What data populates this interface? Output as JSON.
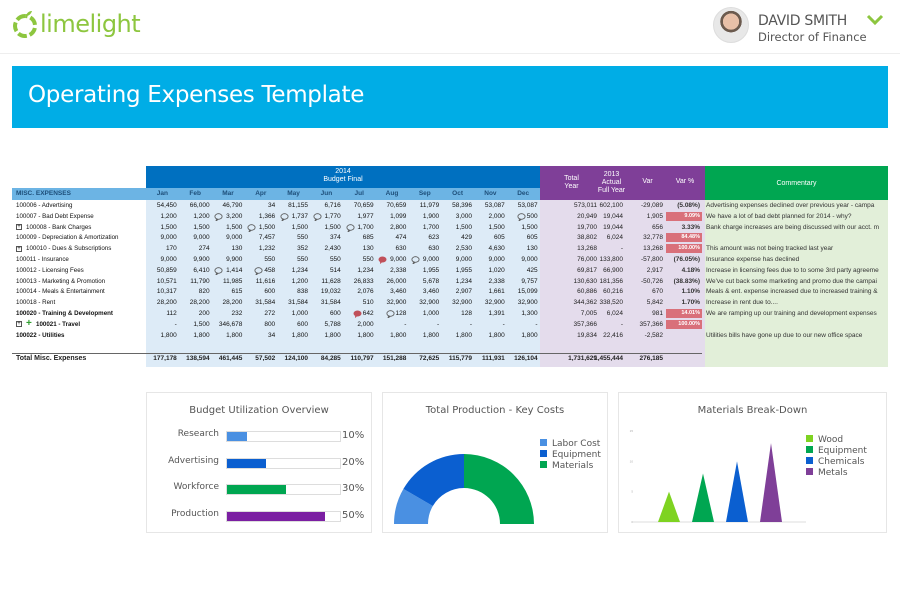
{
  "header": {
    "logo": "limelight",
    "user_name": "DAVID SMITH",
    "user_role": "Director of Finance"
  },
  "banner": {
    "title": "Operating Expenses Template"
  },
  "table": {
    "budget_header": [
      "2014",
      "Budget Final"
    ],
    "section": "MISC. EXPENSES",
    "months": [
      "Jan",
      "Feb",
      "Mar",
      "Apr",
      "May",
      "Jun",
      "Jul",
      "Aug",
      "Sep",
      "Oct",
      "Nov",
      "Dec"
    ],
    "summary_headers": [
      [
        "Total",
        "Year"
      ],
      [
        "2013",
        "Actual",
        "Full Year"
      ],
      [
        "Var"
      ],
      [
        "Var %"
      ]
    ],
    "commentary_header": "Commentary",
    "colors": {
      "budget": "#0070c0",
      "section": "#6cb4e4",
      "month_bg": "#ddebf7",
      "summary": "#7f3f98",
      "summary_bg": "#e4dcec",
      "commentary": "#00a651",
      "commentary_bg": "#e2efd9",
      "alert": "#d9707a"
    },
    "rows": [
      {
        "label": "100006 - Advertising",
        "values": [
          "54,450",
          "66,000",
          "46,790",
          "34",
          "81,155",
          "6,716",
          "70,659",
          "70,659",
          "11,979",
          "58,396",
          "53,087",
          "53,087"
        ],
        "total": "573,011",
        "actual": "602,100",
        "var": "-29,089",
        "varpct": "(5.08%)",
        "comment": "Advertising expenses declined over previous year - campa"
      },
      {
        "label": "100007 - Bad Debt Expense",
        "values": [
          "1,200",
          "1,200",
          "3,200",
          "1,366",
          "1,737",
          "1,770",
          "1,977",
          "1,099",
          "1,900",
          "3,000",
          "2,000",
          "500"
        ],
        "comments": [
          "Mar",
          "May",
          "Jun",
          "Dec"
        ],
        "total": "20,949",
        "actual": "19,044",
        "var": "1,905",
        "varpct": "9.09%",
        "alert": true,
        "comment": "We have a lot of bad debt planned for 2014 - why?"
      },
      {
        "label": "100008 - Bank Charges",
        "expand": true,
        "values": [
          "1,500",
          "1,500",
          "1,500",
          "1,500",
          "1,500",
          "1,500",
          "1,700",
          "2,800",
          "1,700",
          "1,500",
          "1,500",
          "1,500"
        ],
        "comments": [
          "Apr",
          "Jul"
        ],
        "total": "19,700",
        "actual": "19,044",
        "var": "656",
        "varpct": "3.33%",
        "comment": "Bank charge increases are being discussed with our acct. m"
      },
      {
        "label": "100009 - Depreciation & Amortization",
        "values": [
          "9,000",
          "9,000",
          "9,000",
          "7,457",
          "550",
          "374",
          "685",
          "474",
          "623",
          "429",
          "605",
          "605"
        ],
        "total": "38,802",
        "actual": "6,024",
        "var": "32,778",
        "varpct": "84.48%",
        "alert": true,
        "comment": ""
      },
      {
        "label": "100010 - Dues & Subscriptions",
        "expand": true,
        "values": [
          "170",
          "274",
          "130",
          "1,232",
          "352",
          "2,430",
          "130",
          "630",
          "630",
          "2,530",
          "4,630",
          "130"
        ],
        "total": "13,268",
        "actual": "-",
        "var": "13,268",
        "varpct": "100.00%",
        "alert": true,
        "comment": "This amount was not being tracked last year"
      },
      {
        "label": "100011 - Insurance",
        "values": [
          "9,000",
          "9,900",
          "9,900",
          "550",
          "550",
          "550",
          "550",
          "9,000",
          "9,000",
          "9,000",
          "9,000",
          "9,000"
        ],
        "comments": [
          "Sep"
        ],
        "alert_comments": [
          "Aug"
        ],
        "total": "76,000",
        "actual": "133,800",
        "var": "-57,800",
        "varpct": "(76.05%)",
        "comment": "Insurance expense has declined"
      },
      {
        "label": "100012 - Licensing Fees",
        "values": [
          "50,859",
          "6,410",
          "1,414",
          "458",
          "1,234",
          "514",
          "1,234",
          "2,338",
          "1,955",
          "1,955",
          "1,020",
          "425"
        ],
        "comments": [
          "Mar",
          "Apr"
        ],
        "total": "69,817",
        "actual": "66,900",
        "var": "2,917",
        "varpct": "4.18%",
        "comment": "Increase in licensing fees due to to some 3rd party agreeme"
      },
      {
        "label": "100013 - Marketing & Promotion",
        "values": [
          "10,571",
          "11,790",
          "11,985",
          "11,616",
          "1,200",
          "11,628",
          "26,833",
          "26,000",
          "5,678",
          "1,234",
          "2,338",
          "9,757"
        ],
        "total": "130,630",
        "actual": "181,356",
        "var": "-50,726",
        "varpct": "(38.83%)",
        "comment": "We've cut back some marketing and promo due the campai"
      },
      {
        "label": "100014 - Meals & Entertainment",
        "values": [
          "10,317",
          "820",
          "615",
          "600",
          "838",
          "19,032",
          "2,076",
          "3,460",
          "3,460",
          "2,907",
          "1,661",
          "15,099"
        ],
        "total": "60,886",
        "actual": "60,216",
        "var": "670",
        "varpct": "1.10%",
        "comment": "Meals & ent. expense increased due to increased training &"
      },
      {
        "label": "100018 - Rent",
        "values": [
          "28,200",
          "28,200",
          "28,200",
          "31,584",
          "31,584",
          "31,584",
          "510",
          "32,900",
          "32,900",
          "32,900",
          "32,900",
          "32,900"
        ],
        "total": "344,362",
        "actual": "338,520",
        "var": "5,842",
        "varpct": "1.70%",
        "comment": "Increase in rent due to...."
      },
      {
        "label": "100020 - Training & Development",
        "bold": true,
        "values": [
          "112",
          "200",
          "232",
          "272",
          "1,000",
          "600",
          "642",
          "128",
          "1,000",
          "128",
          "1,391",
          "1,300"
        ],
        "comments": [
          "Aug"
        ],
        "alert_comments": [
          "Jul"
        ],
        "total": "7,005",
        "actual": "6,024",
        "var": "981",
        "varpct": "14.01%",
        "alert": true,
        "comment": "We are ramping up our training and development expenses"
      },
      {
        "label": "100021 - Travel",
        "bold": true,
        "expand": true,
        "plus": true,
        "values": [
          "-",
          "1,500",
          "346,678",
          "800",
          "600",
          "5,788",
          "2,000",
          "-",
          "-",
          "-",
          "-",
          "-"
        ],
        "total": "357,366",
        "actual": "-",
        "var": "357,366",
        "varpct": "100.00%",
        "alert": true,
        "comment": ""
      },
      {
        "label": "100022 - Utilities",
        "bold": true,
        "values": [
          "1,800",
          "1,800",
          "1,800",
          "34",
          "1,800",
          "1,800",
          "1,800",
          "1,800",
          "1,800",
          "1,800",
          "1,800",
          "1,800"
        ],
        "total": "19,834",
        "actual": "22,416",
        "var": "-2,582",
        "varpct": "",
        "comment": "Utilities bills have gone up due to our new office space"
      }
    ],
    "total_row": {
      "label": "Total Misc. Expenses",
      "values": [
        "177,178",
        "138,594",
        "461,445",
        "57,502",
        "124,100",
        "84,285",
        "110,797",
        "151,288",
        "72,625",
        "115,779",
        "111,931",
        "126,104"
      ],
      "total": "1,731,629",
      "actual": "1,455,444",
      "var": "276,185"
    }
  },
  "chart_data": [
    {
      "type": "bar",
      "orientation": "horizontal",
      "title": "Budget Utilization Overview",
      "categories": [
        "Research",
        "Advertising",
        "Workforce",
        "Production"
      ],
      "values": [
        10,
        20,
        30,
        50
      ],
      "labels": [
        "10%",
        "20%",
        "30%",
        "50%"
      ],
      "colors": [
        "#4a90e2",
        "#0b5fd0",
        "#00a651",
        "#7b1fa2"
      ],
      "xlim": [
        0,
        100
      ]
    },
    {
      "type": "pie",
      "variant": "half-donut",
      "title": "Total Production - Key Costs",
      "categories": [
        "Labor Cost",
        "Equipment",
        "Materials"
      ],
      "values": [
        16.7,
        33.3,
        50
      ],
      "colors": [
        "#4a90e2",
        "#0b5fd0",
        "#00a651"
      ],
      "legend": "right"
    },
    {
      "type": "bar",
      "variant": "triangle",
      "title": "Materials Break-Down",
      "categories": [
        "Wood",
        "Equipment",
        "Chemicals",
        "Metals"
      ],
      "values": [
        5,
        8,
        10,
        13
      ],
      "colors": [
        "#7ed321",
        "#00a651",
        "#0b5fd0",
        "#7f3f98"
      ],
      "ylim": [
        0,
        15
      ],
      "yticks": [
        0,
        5,
        10,
        15
      ],
      "legend": "right"
    }
  ]
}
